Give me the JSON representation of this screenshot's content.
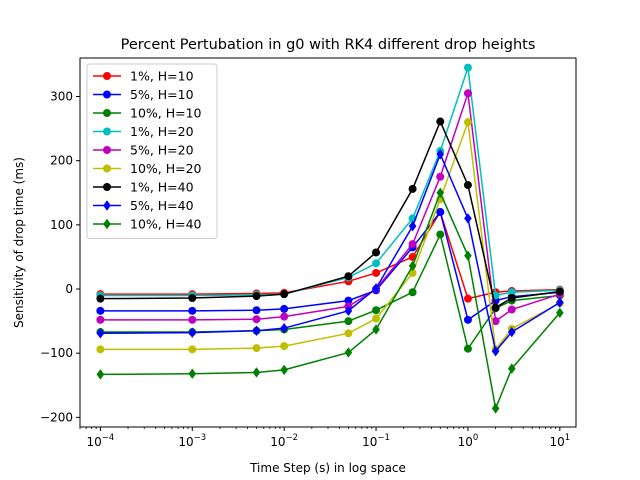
{
  "chart_data": {
    "type": "line",
    "title": "Percent Pertubation in g0 with RK4 different drop heights",
    "xlabel": "Time Step (s) in log space",
    "ylabel": "Sensitivity of drop time (ms)",
    "xscale": "log",
    "xlim": [
      6e-05,
      15
    ],
    "ylim": [
      -215,
      360
    ],
    "yticks": [
      -200,
      -100,
      0,
      100,
      200,
      300
    ],
    "xticks": [
      {
        "value": 0.0001,
        "base": "10",
        "exp": "−4"
      },
      {
        "value": 0.001,
        "base": "10",
        "exp": "−3"
      },
      {
        "value": 0.01,
        "base": "10",
        "exp": "−2"
      },
      {
        "value": 0.1,
        "base": "10",
        "exp": "−1"
      },
      {
        "value": 1,
        "base": "10",
        "exp": "0"
      },
      {
        "value": 10,
        "base": "10",
        "exp": "1"
      }
    ],
    "grid": false,
    "legend_position": "top-left",
    "x": [
      0.0001,
      0.001,
      0.005,
      0.01,
      0.05,
      0.1,
      0.25,
      0.5,
      1,
      2,
      3,
      10
    ],
    "series": [
      {
        "name": "1%, H=10",
        "color": "#ff0000",
        "marker": "circle",
        "values": [
          -8,
          -8,
          -7,
          -6,
          12,
          25,
          50,
          120,
          -15,
          -5,
          -3,
          -1
        ]
      },
      {
        "name": "5%, H=10",
        "color": "#0000ff",
        "marker": "circle",
        "values": [
          -34,
          -34,
          -33,
          -31,
          -18,
          -2,
          65,
          120,
          -48,
          -18,
          -12,
          -5
        ]
      },
      {
        "name": "10%, H=10",
        "color": "#008000",
        "marker": "circle",
        "values": [
          -67,
          -67,
          -65,
          -63,
          -50,
          -33,
          -5,
          85,
          -93,
          -30,
          -18,
          -10
        ]
      },
      {
        "name": "1%, H=20",
        "color": "#00bfbf",
        "marker": "circle",
        "values": [
          -10,
          -10,
          -9,
          -8,
          18,
          40,
          110,
          215,
          345,
          -10,
          -5,
          -2
        ]
      },
      {
        "name": "5%, H=20",
        "color": "#bf00bf",
        "marker": "circle",
        "values": [
          -48,
          -48,
          -47,
          -43,
          -27,
          0,
          70,
          175,
          305,
          -50,
          -32,
          -8
        ]
      },
      {
        "name": "10%, H=20",
        "color": "#bfbf00",
        "marker": "circle",
        "values": [
          -94,
          -94,
          -92,
          -89,
          -69,
          -46,
          25,
          140,
          260,
          -94,
          -62,
          -22
        ]
      },
      {
        "name": "1%, H=40",
        "color": "#000000",
        "marker": "circle",
        "values": [
          -15,
          -14,
          -11,
          -8,
          20,
          57,
          156,
          261,
          162,
          -29,
          -14,
          -4
        ]
      },
      {
        "name": "5%, H=40",
        "color": "#0000ff",
        "marker": "diamond",
        "values": [
          -69,
          -68,
          -65,
          -61,
          -34,
          1,
          98,
          210,
          110,
          -97,
          -67,
          -21
        ]
      },
      {
        "name": "10%, H=40",
        "color": "#008000",
        "marker": "diamond",
        "values": [
          -133,
          -132,
          -130,
          -126,
          -99,
          -63,
          36,
          150,
          52,
          -186,
          -124,
          -37
        ]
      }
    ]
  }
}
